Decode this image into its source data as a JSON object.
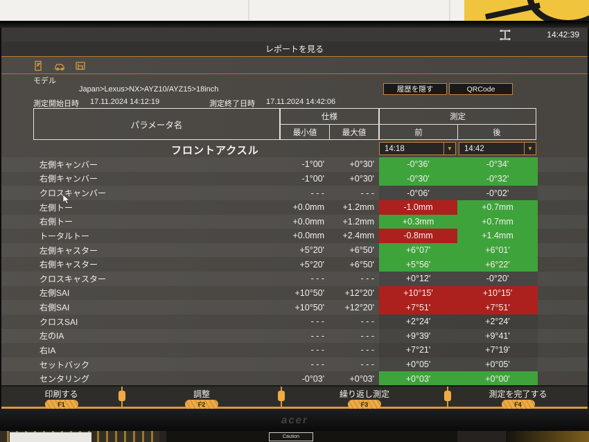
{
  "statusbar": {
    "time": "14:42:39"
  },
  "titlebar": {
    "title": "レポートを見る"
  },
  "toolbar": {
    "icons": [
      "report-edit-icon",
      "vehicle-icon",
      "printer-icon"
    ]
  },
  "header": {
    "model_label": "モデル",
    "vehicle_path": "Japan>Lexus>NX>AYZ10/AYZ15>18inch",
    "start_label": "測定開始日時",
    "start_value": "17.11.2024 14:12:19",
    "end_label": "測定終了日時",
    "end_value": "17.11.2024 14:42:06",
    "hide_history_button": "履歴を隠す",
    "qrcode_button": "QRCode"
  },
  "table": {
    "param_header": "パラメータ名",
    "spec_header": "仕様",
    "measure_header": "測定",
    "min_header": "最小値",
    "max_header": "最大値",
    "before_header": "前",
    "after_header": "後",
    "before_time": "14:18",
    "after_time": "14:42",
    "section_title": "フロントアクスル",
    "rows": [
      {
        "name": "左側キャンバー",
        "min": "-1°00'",
        "max": "+0°30'",
        "before": "-0°36'",
        "after": "-0°34'",
        "before_status": "ok",
        "after_status": "ok"
      },
      {
        "name": "右側キャンバー",
        "min": "-1°00'",
        "max": "+0°30'",
        "before": "-0°30'",
        "after": "-0°32'",
        "before_status": "ok",
        "after_status": "ok"
      },
      {
        "name": "クロスキャンバー",
        "min": "- - -",
        "max": "- - -",
        "before": "-0°06'",
        "after": "-0°02'",
        "before_status": "none",
        "after_status": "none"
      },
      {
        "name": "左側トー",
        "min": "+0.0mm",
        "max": "+1.2mm",
        "before": "-1.0mm",
        "after": "+0.7mm",
        "before_status": "fail",
        "after_status": "ok"
      },
      {
        "name": "右側トー",
        "min": "+0.0mm",
        "max": "+1.2mm",
        "before": "+0.3mm",
        "after": "+0.7mm",
        "before_status": "ok",
        "after_status": "ok"
      },
      {
        "name": "トータルトー",
        "min": "+0.0mm",
        "max": "+2.4mm",
        "before": "-0.8mm",
        "after": "+1.4mm",
        "before_status": "fail",
        "after_status": "ok"
      },
      {
        "name": "左側キャスター",
        "min": "+5°20'",
        "max": "+6°50'",
        "before": "+6°07'",
        "after": "+6°01'",
        "before_status": "ok",
        "after_status": "ok"
      },
      {
        "name": "右側キャスター",
        "min": "+5°20'",
        "max": "+6°50'",
        "before": "+5°56'",
        "after": "+6°22'",
        "before_status": "ok",
        "after_status": "ok"
      },
      {
        "name": "クロスキャスター",
        "min": "- - -",
        "max": "- - -",
        "before": "+0°12'",
        "after": "-0°20'",
        "before_status": "none",
        "after_status": "none"
      },
      {
        "name": "左側SAI",
        "min": "+10°50'",
        "max": "+12°20'",
        "before": "+10°15'",
        "after": "+10°15'",
        "before_status": "fail",
        "after_status": "fail"
      },
      {
        "name": "右側SAI",
        "min": "+10°50'",
        "max": "+12°20'",
        "before": "+7°51'",
        "after": "+7°51'",
        "before_status": "fail",
        "after_status": "fail"
      },
      {
        "name": "クロスSAI",
        "min": "- - -",
        "max": "- - -",
        "before": "+2°24'",
        "after": "+2°24'",
        "before_status": "none",
        "after_status": "none"
      },
      {
        "name": "左のIA",
        "min": "- - -",
        "max": "- - -",
        "before": "+9°39'",
        "after": "+9°41'",
        "before_status": "none",
        "after_status": "none"
      },
      {
        "name": "右IA",
        "min": "- - -",
        "max": "- - -",
        "before": "+7°21'",
        "after": "+7°19'",
        "before_status": "none",
        "after_status": "none"
      },
      {
        "name": "セットバック",
        "min": "- - -",
        "max": "- - -",
        "before": "+0°05'",
        "after": "+0°05'",
        "before_status": "none",
        "after_status": "none"
      },
      {
        "name": "センタリング",
        "min": "-0°03'",
        "max": "+0°03'",
        "before": "+0°03'",
        "after": "+0°00'",
        "before_status": "ok",
        "after_status": "ok"
      }
    ]
  },
  "function_bar": {
    "buttons": [
      {
        "label": "印刷する",
        "key": "F1"
      },
      {
        "label": "調整",
        "key": "F2"
      },
      {
        "label": "繰り返し測定",
        "key": "F3"
      },
      {
        "label": "測定を完了する",
        "key": "F4"
      }
    ]
  },
  "photo": {
    "monitor_brand": "acer",
    "caution_label": "Caution"
  },
  "colors": {
    "ok": "#3fa33c",
    "fail": "#ac211d",
    "accent": "#d89a3c"
  }
}
